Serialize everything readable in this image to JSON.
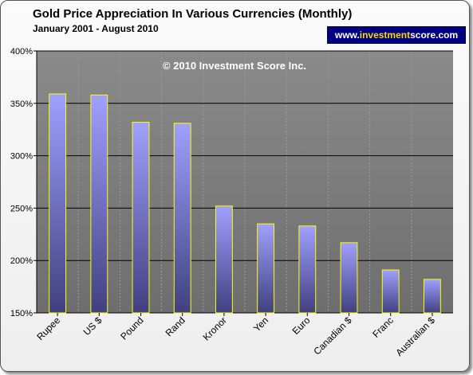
{
  "header": {
    "title": "Gold Price Appreciation In Various Currencies (Monthly)",
    "subtitle": "January 2001 - August 2010",
    "website": {
      "prefix": "www.",
      "highlight": "investment",
      "suffix": "score.com"
    }
  },
  "colors": {
    "plot_bg": "#808080",
    "bar_fill_top": "#a0a0ff",
    "bar_fill_bottom": "#404080",
    "bar_stroke": "#ffff00",
    "grid": "#000000",
    "badge_bg": "#000080",
    "badge_highlight": "#ffd700"
  },
  "chart_data": {
    "type": "bar",
    "title": "Gold Price Appreciation In Various Currencies (Monthly)",
    "subtitle": "January 2001 - August 2010",
    "annotation": "© 2010 Investment Score Inc.",
    "categories": [
      "Rupee",
      "US $",
      "Pound",
      "Rand",
      "Kronor",
      "Yen",
      "Euro",
      "Canadian $",
      "Franc",
      "Australian $"
    ],
    "values": [
      359,
      358,
      332,
      331,
      252,
      235,
      233,
      217,
      191,
      182
    ],
    "y_ticks": [
      "150%",
      "200%",
      "250%",
      "300%",
      "350%",
      "400%"
    ],
    "y_tick_values": [
      150,
      200,
      250,
      300,
      350,
      400
    ],
    "ylim": [
      150,
      400
    ],
    "xlabel": "",
    "ylabel": "",
    "grid": true,
    "legend": "none"
  }
}
